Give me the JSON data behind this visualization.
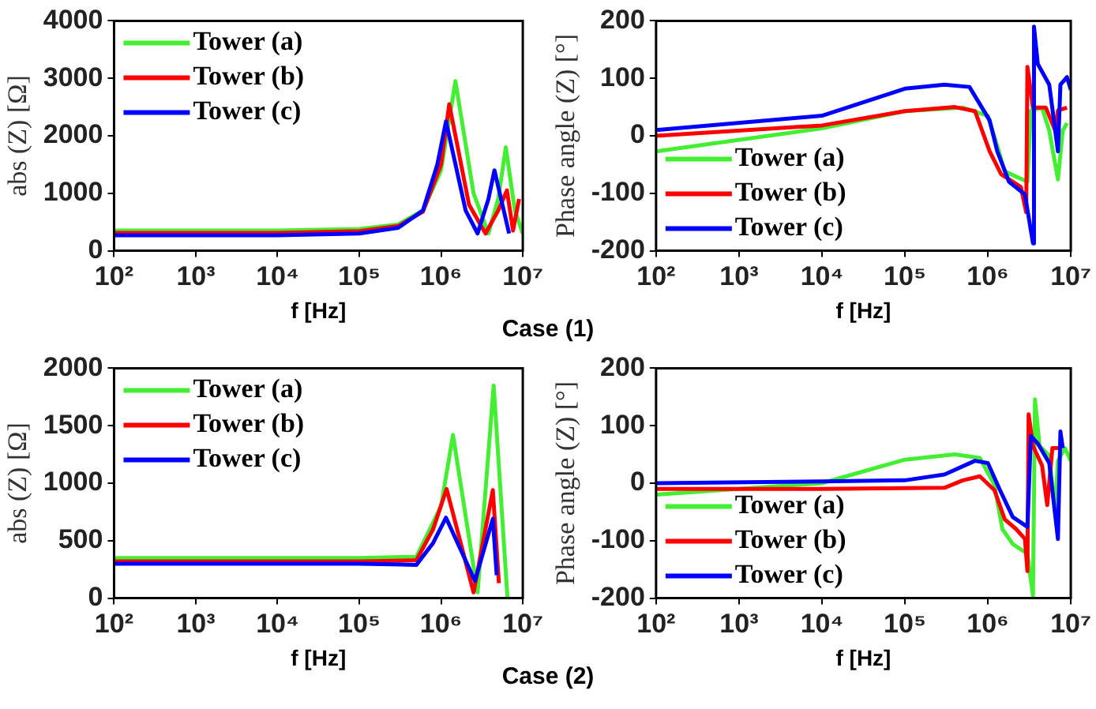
{
  "chart_data": [
    {
      "type": "line",
      "xlabel": "f [Hz]",
      "ylabel": "abs (Z) [Ω]",
      "log": "x",
      "grid": false,
      "legend": "top left",
      "xlim": [
        100,
        10000000
      ],
      "xticks": [
        {
          "value": 100,
          "label": "10²"
        },
        {
          "value": 1000,
          "label": "10³"
        },
        {
          "value": 10000,
          "label": "10⁴"
        },
        {
          "value": 100000,
          "label": "10⁵"
        },
        {
          "value": 1000000,
          "label": "10⁶"
        },
        {
          "value": 10000000,
          "label": "10⁷"
        }
      ],
      "ylim": [
        0,
        4000
      ],
      "yticks": [
        0,
        1000,
        2000,
        3000,
        4000
      ],
      "annotations": [
        "Case (1)"
      ],
      "series": [
        {
          "name": "Tower (a)",
          "color": "#44ee33",
          "x": [
            100,
            10000,
            100000,
            300000,
            600000,
            1000000,
            1500000,
            2500000,
            3800000,
            5000000,
            6200000,
            8000000,
            10000000
          ],
          "values": [
            350,
            350,
            380,
            460,
            700,
            1400,
            2950,
            1000,
            300,
            900,
            1800,
            700,
            300
          ]
        },
        {
          "name": "Tower (b)",
          "color": "#ff0000",
          "x": [
            100,
            10000,
            100000,
            300000,
            600000,
            1000000,
            1260000,
            2200000,
            3500000,
            5000000,
            6400000,
            7600000,
            9000000
          ],
          "values": [
            310,
            310,
            340,
            430,
            680,
            1500,
            2550,
            800,
            300,
            700,
            1050,
            350,
            900
          ]
        },
        {
          "name": "Tower (c)",
          "color": "#0000ff",
          "x": [
            100,
            10000,
            100000,
            300000,
            600000,
            900000,
            1150000,
            2000000,
            2800000,
            3800000,
            4500000,
            6800000
          ],
          "values": [
            270,
            270,
            300,
            400,
            700,
            1500,
            2250,
            700,
            300,
            900,
            1400,
            300
          ]
        }
      ]
    },
    {
      "type": "line",
      "xlabel": "f [Hz]",
      "ylabel": "Phase angle (Z) [°]",
      "log": "x",
      "grid": false,
      "legend": "bottom left",
      "xlim": [
        100,
        10000000
      ],
      "xticks": [
        {
          "value": 100,
          "label": "10²"
        },
        {
          "value": 1000,
          "label": "10³"
        },
        {
          "value": 10000,
          "label": "10⁴"
        },
        {
          "value": 100000,
          "label": "10⁵"
        },
        {
          "value": 1000000,
          "label": "10⁶"
        },
        {
          "value": 10000000,
          "label": "10⁷"
        }
      ],
      "ylim": [
        -200,
        200
      ],
      "yticks": [
        -200,
        -100,
        0,
        100,
        200
      ],
      "series": [
        {
          "name": "Tower (a)",
          "color": "#44ee33",
          "x": [
            100,
            10000,
            100000,
            500000,
            1000000,
            1300000,
            1600000,
            3000000,
            3300000,
            4500000,
            5500000,
            7000000,
            8000000,
            9000000
          ],
          "values": [
            -27,
            13,
            43,
            49,
            35,
            -18,
            -62,
            -80,
            44,
            49,
            9,
            -76,
            9,
            22
          ]
        },
        {
          "name": "Tower (b)",
          "color": "#ff0000",
          "x": [
            100,
            10000,
            100000,
            400000,
            700000,
            1050000,
            1450000,
            2500000,
            2900000,
            3000000,
            3500000,
            5000000,
            6500000,
            7000000,
            9000000
          ],
          "values": [
            0,
            18,
            43,
            50,
            43,
            -27,
            -67,
            -89,
            -133,
            120,
            49,
            49,
            9,
            44,
            49
          ]
        },
        {
          "name": "Tower (c)",
          "color": "#0000ff",
          "x": [
            100,
            10000,
            100000,
            300000,
            600000,
            1050000,
            1300000,
            1800000,
            2800000,
            3500000,
            3600000,
            4000000,
            5500000,
            7000000,
            7500000,
            9000000,
            10000000
          ],
          "values": [
            10,
            35,
            82,
            89,
            85,
            27,
            -27,
            -80,
            -102,
            -187,
            190,
            125,
            89,
            -27,
            89,
            102,
            80
          ]
        }
      ]
    },
    {
      "type": "line",
      "xlabel": "f [Hz]",
      "ylabel": "abs (Z) [Ω]",
      "log": "x",
      "grid": false,
      "legend": "top left",
      "xlim": [
        100,
        10000000
      ],
      "xticks": [
        {
          "value": 100,
          "label": "10²"
        },
        {
          "value": 1000,
          "label": "10³"
        },
        {
          "value": 10000,
          "label": "10⁴"
        },
        {
          "value": 100000,
          "label": "10⁵"
        },
        {
          "value": 1000000,
          "label": "10⁶"
        },
        {
          "value": 10000000,
          "label": "10⁷"
        }
      ],
      "ylim": [
        0,
        2000
      ],
      "yticks": [
        0,
        500,
        1000,
        1500,
        2000
      ],
      "annotations": [
        "Case (2)"
      ],
      "series": [
        {
          "name": "Tower (a)",
          "color": "#44ee33",
          "x": [
            100,
            100000,
            500000,
            1000000,
            1400000,
            2800000,
            4400000,
            6500000
          ],
          "values": [
            350,
            350,
            360,
            800,
            1420,
            50,
            1850,
            0
          ]
        },
        {
          "name": "Tower (b)",
          "color": "#ff0000",
          "x": [
            100,
            100000,
            500000,
            800000,
            1170000,
            2500000,
            4300000,
            5100000
          ],
          "values": [
            320,
            320,
            330,
            600,
            950,
            50,
            940,
            130
          ]
        },
        {
          "name": "Tower (c)",
          "color": "#0000ff",
          "x": [
            100,
            100000,
            500000,
            800000,
            1150000,
            2600000,
            4300000,
            4800000
          ],
          "values": [
            300,
            300,
            290,
            480,
            700,
            150,
            690,
            200
          ]
        }
      ]
    },
    {
      "type": "line",
      "xlabel": "f [Hz]",
      "ylabel": "Phase angle (Z) [°]",
      "log": "x",
      "grid": false,
      "legend": "bottom left",
      "xlim": [
        100,
        10000000
      ],
      "xticks": [
        {
          "value": 100,
          "label": "10²"
        },
        {
          "value": 1000,
          "label": "10³"
        },
        {
          "value": 10000,
          "label": "10⁴"
        },
        {
          "value": 100000,
          "label": "10⁵"
        },
        {
          "value": 1000000,
          "label": "10⁶"
        },
        {
          "value": 10000000,
          "label": "10⁷"
        }
      ],
      "ylim": [
        -200,
        200
      ],
      "yticks": [
        -200,
        -100,
        0,
        100,
        200
      ],
      "series": [
        {
          "name": "Tower (a)",
          "color": "#44ee33",
          "x": [
            100,
            10000,
            100000,
            400000,
            800000,
            1200000,
            1500000,
            2000000,
            3000000,
            3500000,
            3700000,
            4200000,
            5500000,
            6500000,
            7000000,
            8500000,
            10000000
          ],
          "values": [
            -20,
            0,
            41,
            50,
            44,
            -3,
            -80,
            -106,
            -123,
            -196,
            146,
            65,
            48,
            -50,
            39,
            61,
            39
          ]
        },
        {
          "name": "Tower (b)",
          "color": "#ff0000",
          "x": [
            100,
            10000,
            300000,
            500000,
            800000,
            1200000,
            1600000,
            2200000,
            2800000,
            3000000,
            3100000,
            3500000,
            4500000,
            5200000,
            6000000,
            7500000
          ],
          "values": [
            -10,
            -10,
            -8,
            5,
            12,
            -12,
            -63,
            -80,
            -97,
            -153,
            120,
            65,
            31,
            -38,
            61,
            61
          ]
        },
        {
          "name": "Tower (c)",
          "color": "#0000ff",
          "x": [
            100,
            10000,
            100000,
            300000,
            700000,
            1000000,
            1400000,
            2000000,
            3000000,
            3300000,
            4000000,
            5500000,
            7000000,
            7500000,
            8000000
          ],
          "values": [
            0,
            3,
            5,
            15,
            39,
            35,
            -12,
            -59,
            -76,
            82,
            69,
            35,
            -97,
            90,
            61
          ]
        }
      ]
    }
  ]
}
